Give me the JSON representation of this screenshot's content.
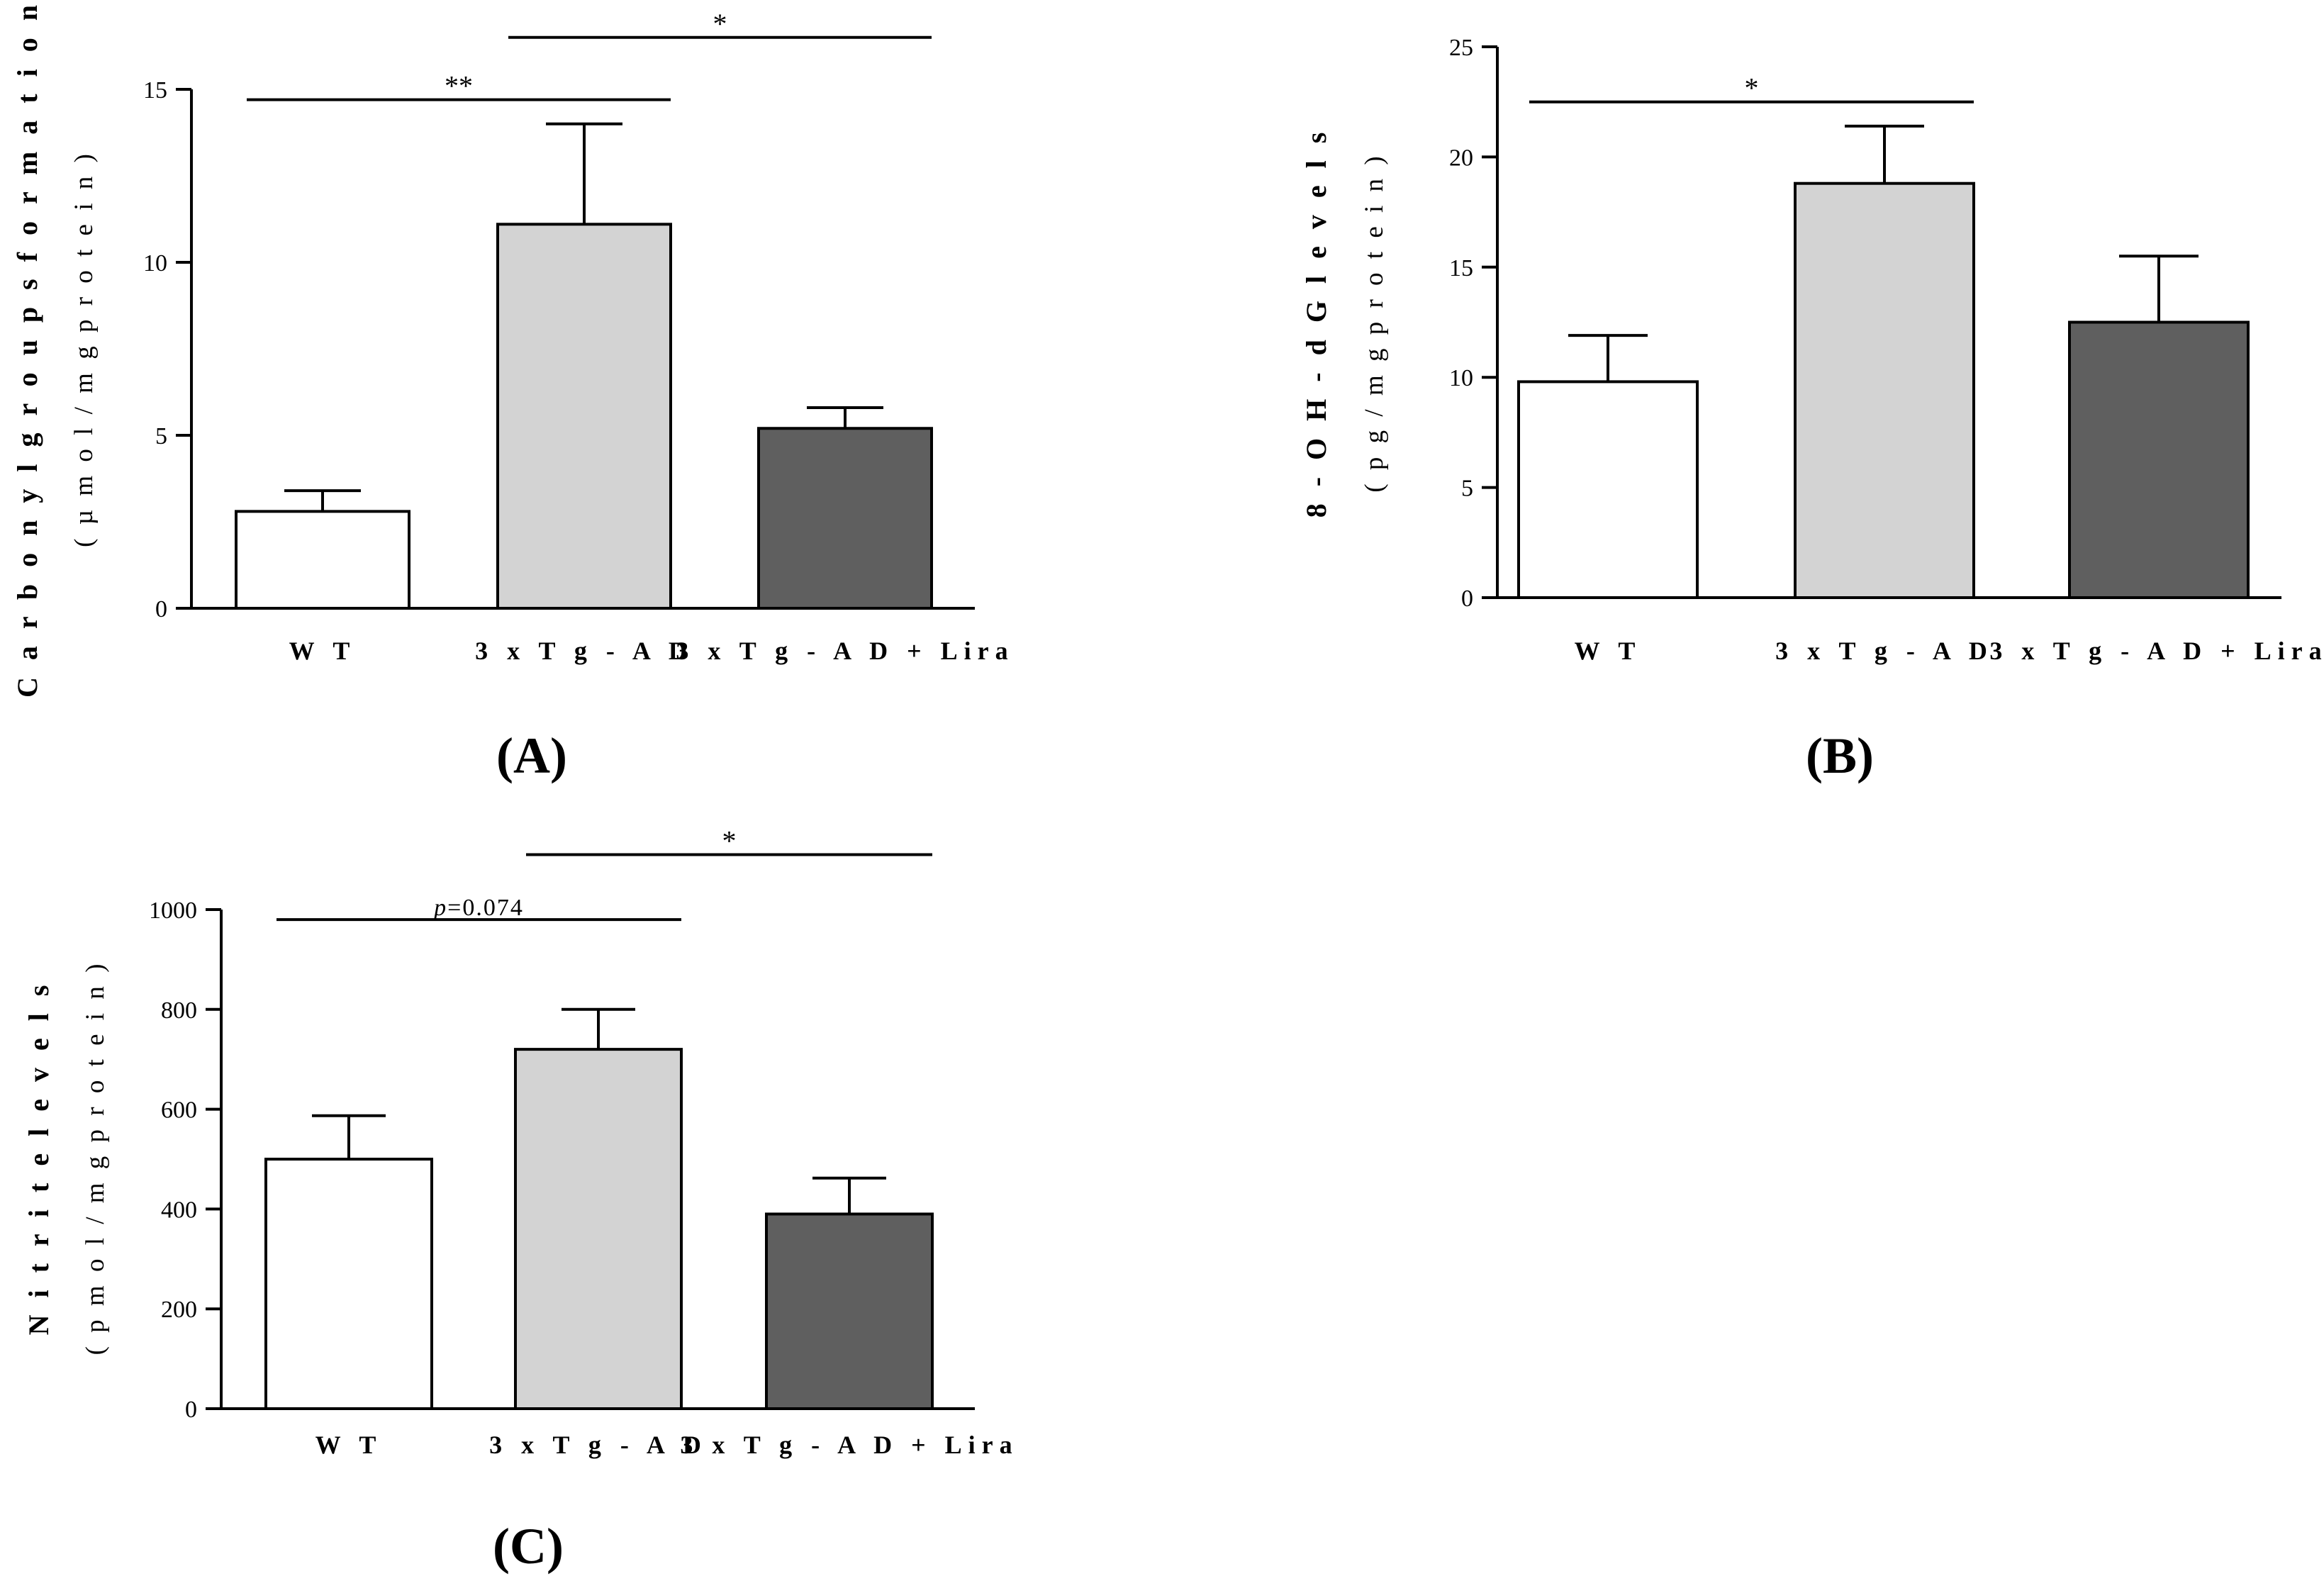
{
  "chart_data": [
    {
      "id": "A",
      "type": "bar",
      "panel_label": "(A)",
      "categories": [
        "W T",
        "3 x T g - A D",
        "3 x T g - A D  +  Lira"
      ],
      "values": [
        2.8,
        11.1,
        5.2
      ],
      "errors": [
        0.6,
        2.9,
        0.6
      ],
      "bar_colors": [
        "#ffffff",
        "#d3d3d3",
        "#5f5f5f"
      ],
      "ylabel_line1": "C a r b o n y l  g r o u p s  f o r m a t i o n",
      "ylabel_line2": "( µ m o l / m g  p r o t e i n )",
      "ylim": [
        0,
        15
      ],
      "yticks": [
        0,
        5,
        10,
        15
      ],
      "ytick_labels": [
        "0",
        "5",
        "10",
        "15"
      ],
      "significance": [
        {
          "from": 0,
          "to": 1,
          "label": "**",
          "y": 14.7
        },
        {
          "from": 1,
          "to": 2,
          "label": "*",
          "y": 16.5
        }
      ]
    },
    {
      "id": "B",
      "type": "bar",
      "panel_label": "(B)",
      "categories": [
        "W T",
        "3 x T g - A D",
        "3 x T g - A D  +  Lira"
      ],
      "values": [
        9.8,
        18.8,
        12.5
      ],
      "errors": [
        2.1,
        2.6,
        3.0
      ],
      "bar_colors": [
        "#ffffff",
        "#d3d3d3",
        "#5f5f5f"
      ],
      "ylabel_line1": "8 - O H - d G  l e v e l s",
      "ylabel_line2": "( p g / m g  p r o t e i n )",
      "ylim": [
        0,
        25
      ],
      "yticks": [
        0,
        5,
        10,
        15,
        20,
        25
      ],
      "ytick_labels": [
        "0",
        "5",
        "10",
        "15",
        "20",
        "25"
      ],
      "significance": [
        {
          "from": 0,
          "to": 1,
          "label": "*",
          "y": 22.5
        }
      ]
    },
    {
      "id": "C",
      "type": "bar",
      "panel_label": "(C)",
      "categories": [
        "W T",
        "3 x T g - A D",
        "3 x T g - A D  +  Lira"
      ],
      "values": [
        500,
        720,
        390
      ],
      "errors": [
        87,
        80,
        72
      ],
      "bar_colors": [
        "#ffffff",
        "#d3d3d3",
        "#5f5f5f"
      ],
      "ylabel_line1": "N i t r i t e  l e v e l s",
      "ylabel_line2": "( p m o l / m g  p r o t e i n )",
      "ylim": [
        0,
        1000
      ],
      "yticks": [
        0,
        200,
        400,
        600,
        800,
        1000
      ],
      "ytick_labels": [
        "0",
        "200",
        "400",
        "600",
        "800",
        "1000"
      ],
      "significance": [
        {
          "from": 0,
          "to": 1,
          "label": "p=0.074",
          "italic_prefix": "p",
          "rest": "=0.074",
          "y": 980
        },
        {
          "from": 1,
          "to": 2,
          "label": "*",
          "y": 1110
        }
      ]
    }
  ]
}
